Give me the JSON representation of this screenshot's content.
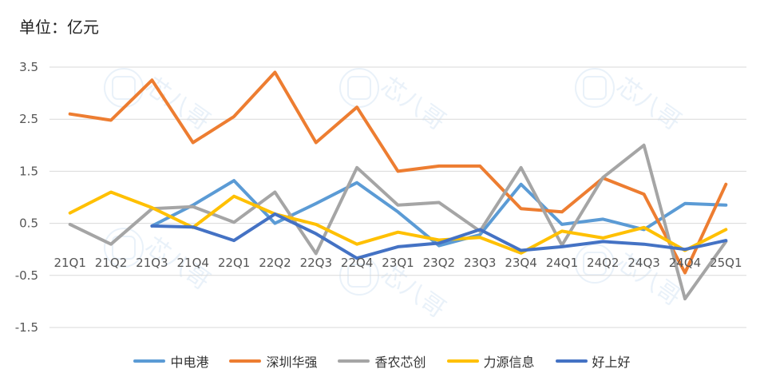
{
  "unit_label": "单位：亿元",
  "watermark_text": "芯八哥",
  "chart_data": {
    "type": "line",
    "categories": [
      "21Q1",
      "21Q2",
      "21Q3",
      "21Q4",
      "22Q1",
      "22Q2",
      "22Q3",
      "22Q4",
      "23Q1",
      "23Q2",
      "23Q3",
      "23Q4",
      "24Q1",
      "24Q2",
      "24Q3",
      "24Q4",
      "25Q1"
    ],
    "ylim": [
      -1.5,
      3.5
    ],
    "yticks": [
      -1.5,
      -0.5,
      0.5,
      1.5,
      2.5,
      3.5
    ],
    "ytick_labels": [
      "-1.5",
      "-0.5",
      "0.5",
      "1.5",
      "2.5",
      "3.5"
    ],
    "grid": true,
    "legend_position": "bottom",
    "series": [
      {
        "name": "中电港",
        "color": "#5B9BD5",
        "values": [
          null,
          null,
          0.45,
          0.85,
          1.32,
          0.5,
          0.88,
          1.28,
          0.72,
          0.07,
          0.28,
          1.25,
          0.48,
          0.58,
          0.38,
          0.88,
          0.85
        ]
      },
      {
        "name": "深圳华强",
        "color": "#ED7D31",
        "values": [
          2.6,
          2.48,
          3.25,
          2.05,
          2.55,
          3.4,
          2.05,
          2.73,
          1.5,
          1.6,
          1.6,
          0.78,
          0.72,
          1.37,
          1.06,
          -0.45,
          1.25
        ]
      },
      {
        "name": "香农芯创",
        "color": "#A5A5A5",
        "values": [
          0.48,
          0.1,
          0.78,
          0.82,
          0.52,
          1.1,
          -0.08,
          1.57,
          0.85,
          0.9,
          0.35,
          1.57,
          0.08,
          1.38,
          2.0,
          -0.95,
          0.15
        ]
      },
      {
        "name": "力源信息",
        "color": "#FFC000",
        "values": [
          0.7,
          1.1,
          0.8,
          0.42,
          1.02,
          0.68,
          0.48,
          0.1,
          0.33,
          0.18,
          0.23,
          -0.07,
          0.35,
          0.22,
          0.42,
          -0.02,
          0.38
        ]
      },
      {
        "name": "好上好",
        "color": "#4472C4",
        "values": [
          null,
          null,
          0.45,
          0.43,
          0.17,
          0.68,
          0.3,
          -0.17,
          0.05,
          0.12,
          0.38,
          -0.02,
          0.05,
          0.15,
          0.1,
          0.0,
          0.17
        ]
      }
    ]
  }
}
